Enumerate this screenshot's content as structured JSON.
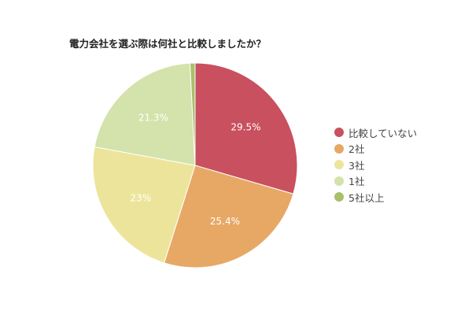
{
  "chart_data": {
    "type": "pie",
    "title": "電力会社を選ぶ際は何社と比較しましたか？",
    "categories": [
      "比較していない",
      "2社",
      "3社",
      "1社",
      "5社以上"
    ],
    "values": [
      29.5,
      25.4,
      23,
      21.3,
      0.8
    ],
    "labels": [
      "29.5%",
      "25.4%",
      "23%",
      "21.3%",
      ""
    ],
    "colors": [
      "#c9505e",
      "#e7a866",
      "#ede49c",
      "#d4e2ab",
      "#a8c06a"
    ],
    "legend_position": "right"
  },
  "legend": [
    {
      "label": "比較していない",
      "color": "#c9505e"
    },
    {
      "label": "2社",
      "color": "#e7a866"
    },
    {
      "label": "3社",
      "color": "#ede49c"
    },
    {
      "label": "1社",
      "color": "#d4e2ab"
    },
    {
      "label": "5社以上",
      "color": "#a8c06a"
    }
  ]
}
